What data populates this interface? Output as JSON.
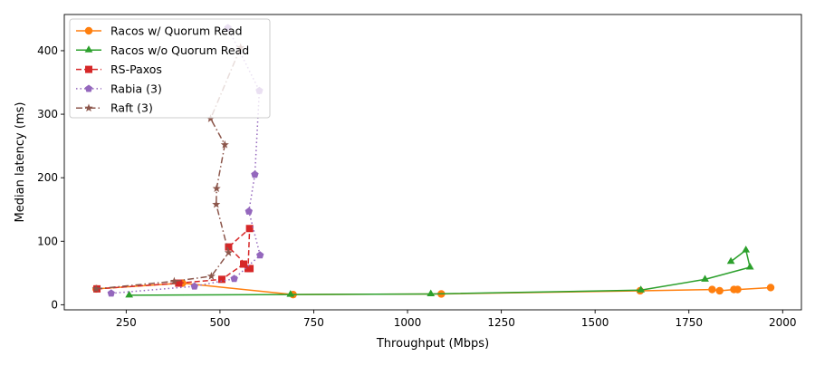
{
  "chart_data": {
    "type": "line",
    "xlabel": "Throughput (Mbps)",
    "ylabel": "Median latency (ms)",
    "xlim": [
      85,
      2050
    ],
    "ylim": [
      -8,
      457
    ],
    "xticks": [
      250,
      500,
      750,
      1000,
      1250,
      1500,
      1750,
      2000
    ],
    "yticks": [
      0,
      100,
      200,
      300,
      400
    ],
    "grid": false,
    "legend_position": "top-left",
    "series": [
      {
        "name": "Racos w/ Quorum Read",
        "color": "#ff7f0e",
        "linestyle": "solid",
        "marker": "circle",
        "points": [
          [
            170,
            25
          ],
          [
            400,
            34
          ],
          [
            695,
            16
          ],
          [
            1090,
            17
          ],
          [
            1620,
            22
          ],
          [
            1812,
            24
          ],
          [
            1832,
            22
          ],
          [
            1870,
            24
          ],
          [
            1880,
            24
          ],
          [
            1968,
            27
          ]
        ]
      },
      {
        "name": "Racos w/o Quorum Read",
        "color": "#2ca02c",
        "linestyle": "solid",
        "marker": "triangle",
        "points": [
          [
            258,
            15
          ],
          [
            688,
            16
          ],
          [
            1062,
            17
          ],
          [
            1622,
            23
          ],
          [
            1793,
            40
          ],
          [
            1913,
            59
          ],
          [
            1902,
            86
          ],
          [
            1862,
            68
          ]
        ]
      },
      {
        "name": "RS-Paxos",
        "color": "#d62728",
        "linestyle": "dashed",
        "marker": "square",
        "points": [
          [
            172,
            25
          ],
          [
            390,
            34
          ],
          [
            505,
            40
          ],
          [
            563,
            64
          ],
          [
            575,
            57
          ],
          [
            579,
            120
          ],
          [
            523,
            91
          ],
          [
            580,
            57
          ]
        ]
      },
      {
        "name": "Rabia (3)",
        "color": "#9467bd",
        "linestyle": "dotted",
        "marker": "pentagon",
        "points": [
          [
            210,
            18
          ],
          [
            432,
            29
          ],
          [
            538,
            41
          ],
          [
            607,
            78
          ],
          [
            577,
            147
          ],
          [
            593,
            205
          ],
          [
            605,
            337
          ],
          [
            521,
            436
          ]
        ]
      },
      {
        "name": "Raft (3)",
        "color": "#8c564b",
        "linestyle": "dashdot",
        "marker": "star",
        "points": [
          [
            170,
            25
          ],
          [
            378,
            37
          ],
          [
            477,
            45
          ],
          [
            523,
            82
          ],
          [
            490,
            158
          ],
          [
            491,
            183
          ],
          [
            513,
            252
          ],
          [
            475,
            293
          ],
          [
            555,
            405
          ]
        ]
      }
    ]
  }
}
